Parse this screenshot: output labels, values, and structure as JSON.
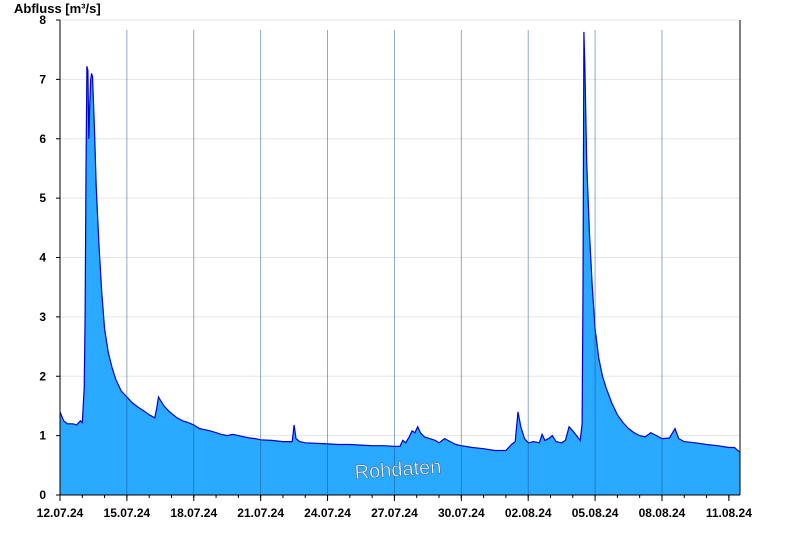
{
  "chart_data": {
    "type": "area",
    "ylabel": "Abfluss [m³/s]",
    "ylim": [
      0,
      8
    ],
    "yticks": [
      0,
      1,
      2,
      3,
      4,
      5,
      6,
      7,
      8
    ],
    "xlim": [
      "2024-07-12T00:00",
      "2024-08-11T12:00"
    ],
    "xtick_labels": [
      "12.07.24",
      "15.07.24",
      "18.07.24",
      "21.07.24",
      "24.07.24",
      "27.07.24",
      "30.07.24",
      "02.08.24",
      "05.08.24",
      "08.08.24",
      "11.08.24"
    ],
    "grid": true,
    "fill_color": "#29a9ff",
    "line_color": "#0000cc",
    "grid_color": "#e6e6e6",
    "watermark": "Rohdaten",
    "series": [
      {
        "points": [
          [
            "2024-07-12T00:00",
            1.4
          ],
          [
            "2024-07-12T02:00",
            1.32
          ],
          [
            "2024-07-12T04:00",
            1.25
          ],
          [
            "2024-07-12T08:00",
            1.2
          ],
          [
            "2024-07-12T14:00",
            1.2
          ],
          [
            "2024-07-12T18:00",
            1.18
          ],
          [
            "2024-07-12T20:00",
            1.22
          ],
          [
            "2024-07-12T22:00",
            1.25
          ],
          [
            "2024-07-13T00:00",
            1.22
          ],
          [
            "2024-07-13T02:00",
            1.8
          ],
          [
            "2024-07-13T03:00",
            3.0
          ],
          [
            "2024-07-13T04:00",
            5.5
          ],
          [
            "2024-07-13T05:00",
            7.22
          ],
          [
            "2024-07-13T06:00",
            7.15
          ],
          [
            "2024-07-13T07:00",
            6.0
          ],
          [
            "2024-07-13T08:00",
            6.55
          ],
          [
            "2024-07-13T09:00",
            7.0
          ],
          [
            "2024-07-13T10:00",
            7.1
          ],
          [
            "2024-07-13T11:00",
            7.05
          ],
          [
            "2024-07-13T13:00",
            6.2
          ],
          [
            "2024-07-13T15:00",
            5.2
          ],
          [
            "2024-07-13T18:00",
            4.2
          ],
          [
            "2024-07-13T21:00",
            3.4
          ],
          [
            "2024-07-14T00:00",
            2.8
          ],
          [
            "2024-07-14T04:00",
            2.4
          ],
          [
            "2024-07-14T08:00",
            2.15
          ],
          [
            "2024-07-14T12:00",
            1.95
          ],
          [
            "2024-07-14T18:00",
            1.75
          ],
          [
            "2024-07-15T00:00",
            1.65
          ],
          [
            "2024-07-15T06:00",
            1.55
          ],
          [
            "2024-07-15T12:00",
            1.48
          ],
          [
            "2024-07-15T18:00",
            1.42
          ],
          [
            "2024-07-16T00:00",
            1.35
          ],
          [
            "2024-07-16T06:00",
            1.3
          ],
          [
            "2024-07-16T08:00",
            1.45
          ],
          [
            "2024-07-16T10:00",
            1.65
          ],
          [
            "2024-07-16T12:00",
            1.6
          ],
          [
            "2024-07-16T16:00",
            1.5
          ],
          [
            "2024-07-16T22:00",
            1.4
          ],
          [
            "2024-07-17T06:00",
            1.3
          ],
          [
            "2024-07-17T12:00",
            1.25
          ],
          [
            "2024-07-17T18:00",
            1.22
          ],
          [
            "2024-07-18T00:00",
            1.18
          ],
          [
            "2024-07-18T06:00",
            1.12
          ],
          [
            "2024-07-18T12:00",
            1.1
          ],
          [
            "2024-07-18T18:00",
            1.08
          ],
          [
            "2024-07-19T00:00",
            1.05
          ],
          [
            "2024-07-19T06:00",
            1.02
          ],
          [
            "2024-07-19T12:00",
            1.0
          ],
          [
            "2024-07-19T18:00",
            1.02
          ],
          [
            "2024-07-20T00:00",
            1.0
          ],
          [
            "2024-07-20T06:00",
            0.98
          ],
          [
            "2024-07-20T12:00",
            0.96
          ],
          [
            "2024-07-20T18:00",
            0.95
          ],
          [
            "2024-07-21T00:00",
            0.93
          ],
          [
            "2024-07-21T12:00",
            0.92
          ],
          [
            "2024-07-22T00:00",
            0.9
          ],
          [
            "2024-07-22T06:00",
            0.9
          ],
          [
            "2024-07-22T10:00",
            0.9
          ],
          [
            "2024-07-22T12:00",
            1.18
          ],
          [
            "2024-07-22T14:00",
            0.95
          ],
          [
            "2024-07-22T18:00",
            0.9
          ],
          [
            "2024-07-23T00:00",
            0.88
          ],
          [
            "2024-07-23T12:00",
            0.87
          ],
          [
            "2024-07-24T00:00",
            0.86
          ],
          [
            "2024-07-24T12:00",
            0.85
          ],
          [
            "2024-07-25T00:00",
            0.85
          ],
          [
            "2024-07-25T12:00",
            0.84
          ],
          [
            "2024-07-26T00:00",
            0.83
          ],
          [
            "2024-07-26T12:00",
            0.83
          ],
          [
            "2024-07-27T00:00",
            0.82
          ],
          [
            "2024-07-27T06:00",
            0.82
          ],
          [
            "2024-07-27T09:00",
            0.92
          ],
          [
            "2024-07-27T12:00",
            0.88
          ],
          [
            "2024-07-27T16:00",
            0.98
          ],
          [
            "2024-07-27T19:00",
            1.08
          ],
          [
            "2024-07-27T22:00",
            1.05
          ],
          [
            "2024-07-28T01:00",
            1.15
          ],
          [
            "2024-07-28T04:00",
            1.05
          ],
          [
            "2024-07-28T08:00",
            0.98
          ],
          [
            "2024-07-28T14:00",
            0.95
          ],
          [
            "2024-07-28T20:00",
            0.92
          ],
          [
            "2024-07-29T00:00",
            0.88
          ],
          [
            "2024-07-29T06:00",
            0.95
          ],
          [
            "2024-07-29T12:00",
            0.9
          ],
          [
            "2024-07-29T18:00",
            0.85
          ],
          [
            "2024-07-30T00:00",
            0.83
          ],
          [
            "2024-07-30T12:00",
            0.8
          ],
          [
            "2024-07-31T00:00",
            0.78
          ],
          [
            "2024-07-31T12:00",
            0.75
          ],
          [
            "2024-08-01T00:00",
            0.75
          ],
          [
            "2024-08-01T06:00",
            0.85
          ],
          [
            "2024-08-01T10:00",
            0.9
          ],
          [
            "2024-08-01T13:00",
            1.4
          ],
          [
            "2024-08-01T16:00",
            1.15
          ],
          [
            "2024-08-01T20:00",
            0.95
          ],
          [
            "2024-08-02T00:00",
            0.88
          ],
          [
            "2024-08-02T06:00",
            0.9
          ],
          [
            "2024-08-02T12:00",
            0.88
          ],
          [
            "2024-08-02T15:00",
            1.02
          ],
          [
            "2024-08-02T18:00",
            0.92
          ],
          [
            "2024-08-02T22:00",
            0.95
          ],
          [
            "2024-08-03T02:00",
            1.0
          ],
          [
            "2024-08-03T06:00",
            0.9
          ],
          [
            "2024-08-03T12:00",
            0.88
          ],
          [
            "2024-08-03T16:00",
            0.92
          ],
          [
            "2024-08-03T20:00",
            1.15
          ],
          [
            "2024-08-04T00:00",
            1.08
          ],
          [
            "2024-08-04T04:00",
            1.0
          ],
          [
            "2024-08-04T08:00",
            0.92
          ],
          [
            "2024-08-04T10:00",
            1.2
          ],
          [
            "2024-08-04T11:00",
            3.5
          ],
          [
            "2024-08-04T12:00",
            7.8
          ],
          [
            "2024-08-04T13:00",
            7.2
          ],
          [
            "2024-08-04T15:00",
            5.6
          ],
          [
            "2024-08-04T18:00",
            4.4
          ],
          [
            "2024-08-04T21:00",
            3.5
          ],
          [
            "2024-08-05T00:00",
            2.8
          ],
          [
            "2024-08-05T04:00",
            2.3
          ],
          [
            "2024-08-05T08:00",
            2.0
          ],
          [
            "2024-08-05T12:00",
            1.8
          ],
          [
            "2024-08-05T18:00",
            1.55
          ],
          [
            "2024-08-06T00:00",
            1.35
          ],
          [
            "2024-08-06T06:00",
            1.22
          ],
          [
            "2024-08-06T12:00",
            1.12
          ],
          [
            "2024-08-06T18:00",
            1.05
          ],
          [
            "2024-08-07T00:00",
            1.0
          ],
          [
            "2024-08-07T06:00",
            0.98
          ],
          [
            "2024-08-07T12:00",
            1.05
          ],
          [
            "2024-08-07T18:00",
            1.0
          ],
          [
            "2024-08-08T00:00",
            0.95
          ],
          [
            "2024-08-08T08:00",
            0.96
          ],
          [
            "2024-08-08T14:00",
            1.12
          ],
          [
            "2024-08-08T18:00",
            0.95
          ],
          [
            "2024-08-09T00:00",
            0.9
          ],
          [
            "2024-08-09T12:00",
            0.88
          ],
          [
            "2024-08-10T00:00",
            0.85
          ],
          [
            "2024-08-10T12:00",
            0.83
          ],
          [
            "2024-08-11T00:00",
            0.8
          ],
          [
            "2024-08-11T06:00",
            0.8
          ],
          [
            "2024-08-11T12:00",
            0.72
          ]
        ]
      }
    ]
  }
}
